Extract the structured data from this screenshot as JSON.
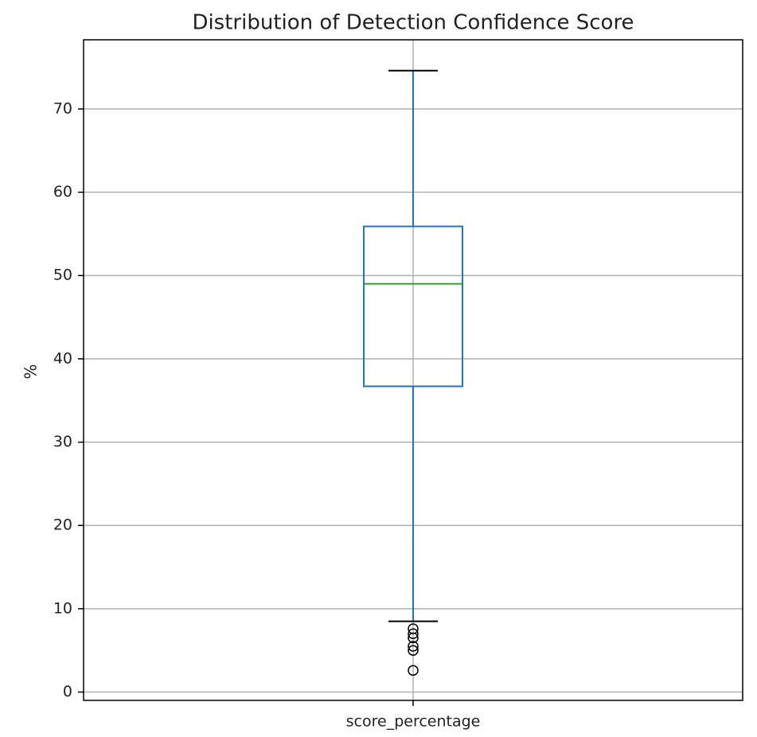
{
  "chart_data": {
    "type": "box",
    "title": "Distribution of Detection Confidence Score",
    "ylabel": "%",
    "categories": [
      "score_percentage"
    ],
    "boxes": [
      {
        "whislo": 8.5,
        "q1": 36.7,
        "med": 49.0,
        "q3": 55.9,
        "whishi": 74.6,
        "fliers": [
          7.6,
          7.0,
          6.5,
          5.5,
          5.0,
          2.6
        ]
      }
    ],
    "color": "#1f77b4",
    "median_color": "#2ca02c",
    "ylim": [
      -1,
      78.3
    ],
    "yticks": [
      0,
      10,
      20,
      30,
      40,
      50,
      60,
      70
    ],
    "grid": true
  }
}
